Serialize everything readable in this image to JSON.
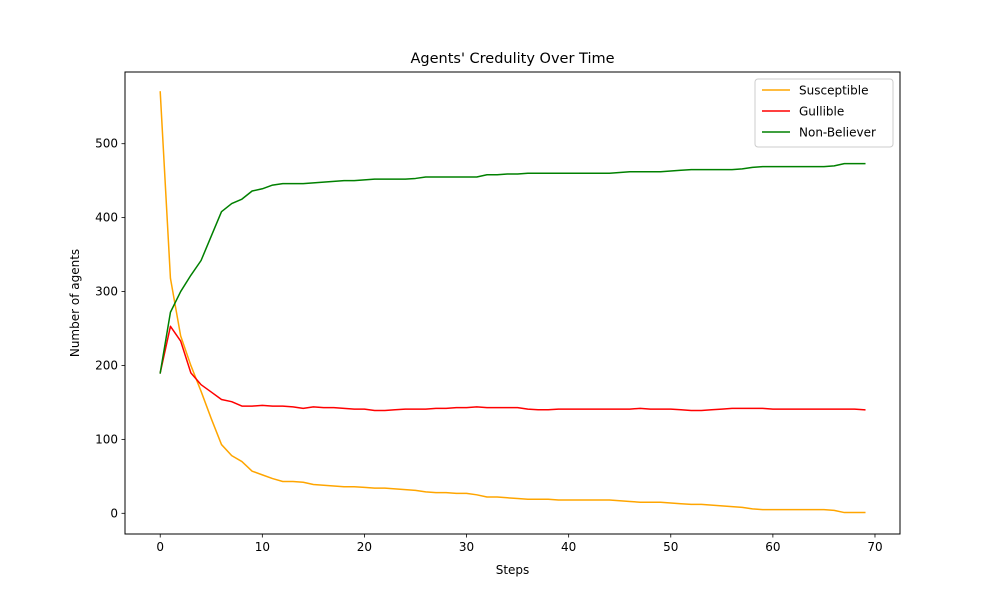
{
  "chart_data": {
    "type": "line",
    "title": "Agents' Credulity Over Time",
    "xlabel": "Steps",
    "ylabel": "Number of agents",
    "xlim": [
      -3.45,
      72.45
    ],
    "ylim": [
      -28,
      597
    ],
    "xticks": [
      0,
      10,
      20,
      30,
      40,
      50,
      60,
      70
    ],
    "yticks": [
      0,
      100,
      200,
      300,
      400,
      500
    ],
    "grid": false,
    "legend": "top-right",
    "x": [
      0,
      1,
      2,
      3,
      4,
      5,
      6,
      7,
      8,
      9,
      10,
      11,
      12,
      13,
      14,
      15,
      16,
      17,
      18,
      19,
      20,
      21,
      22,
      23,
      24,
      25,
      26,
      27,
      28,
      29,
      30,
      31,
      32,
      33,
      34,
      35,
      36,
      37,
      38,
      39,
      40,
      41,
      42,
      43,
      44,
      45,
      46,
      47,
      48,
      49,
      50,
      51,
      52,
      53,
      54,
      55,
      56,
      57,
      58,
      59,
      60,
      61,
      62,
      63,
      64,
      65,
      66,
      67,
      68,
      69
    ],
    "series": [
      {
        "name": "Susceptible",
        "color": "#ffa500",
        "values": [
          570,
          318,
          240,
          200,
          165,
          128,
          93,
          78,
          70,
          57,
          52,
          47,
          43,
          43,
          42,
          39,
          38,
          37,
          36,
          36,
          35,
          34,
          34,
          33,
          32,
          31,
          29,
          28,
          28,
          27,
          27,
          25,
          22,
          22,
          21,
          20,
          19,
          19,
          19,
          18,
          18,
          18,
          18,
          18,
          18,
          17,
          16,
          15,
          15,
          15,
          14,
          13,
          12,
          12,
          11,
          10,
          9,
          8,
          6,
          5,
          5,
          5,
          5,
          5,
          5,
          5,
          4,
          1,
          1,
          1
        ]
      },
      {
        "name": "Gullible",
        "color": "#ff0000",
        "values": [
          190,
          253,
          233,
          190,
          174,
          164,
          154,
          151,
          145,
          145,
          146,
          145,
          145,
          144,
          142,
          144,
          143,
          143,
          142,
          141,
          141,
          139,
          139,
          140,
          141,
          141,
          141,
          142,
          142,
          143,
          143,
          144,
          143,
          143,
          143,
          143,
          141,
          140,
          140,
          141,
          141,
          141,
          141,
          141,
          141,
          141,
          141,
          142,
          141,
          141,
          141,
          140,
          139,
          139,
          140,
          141,
          142,
          142,
          142,
          142,
          141,
          141,
          141,
          141,
          141,
          141,
          141,
          141,
          141,
          140
        ]
      },
      {
        "name": "Non-Believer",
        "color": "#008000",
        "values": [
          190,
          272,
          300,
          322,
          342,
          375,
          408,
          419,
          425,
          436,
          439,
          444,
          446,
          446,
          446,
          447,
          448,
          449,
          450,
          450,
          451,
          452,
          452,
          452,
          452,
          453,
          455,
          455,
          455,
          455,
          455,
          455,
          458,
          458,
          459,
          459,
          460,
          460,
          460,
          460,
          460,
          460,
          460,
          460,
          460,
          461,
          462,
          462,
          462,
          462,
          463,
          464,
          465,
          465,
          465,
          465,
          465,
          466,
          468,
          469,
          469,
          469,
          469,
          469,
          469,
          469,
          470,
          473,
          473,
          473
        ]
      }
    ]
  }
}
